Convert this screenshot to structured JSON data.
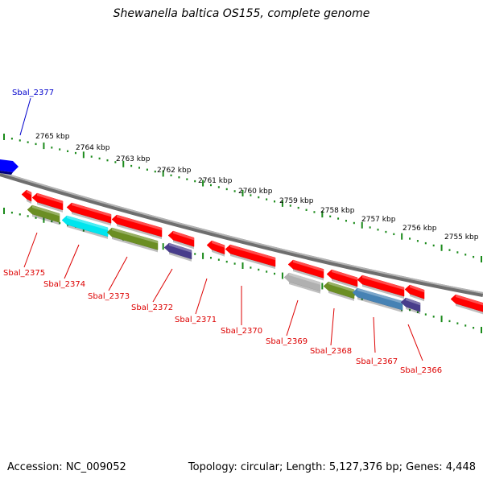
{
  "title": "Shewanella baltica OS155, complete genome",
  "footer": {
    "accession": "Accession: NC_009052",
    "summary": "Topology: circular; Length: 5,127,376 bp; Genes: 4,448"
  },
  "colors": {
    "backbone": "#808080",
    "ticks": "#1a8a1a",
    "label_forward": "#0000cc",
    "label_reverse": "#dd0000",
    "gene_red": "#ff0000",
    "gene_blue": "#0000ff",
    "gene_olive": "#6b8e23",
    "gene_cyan": "#00e5ee",
    "gene_slate": "#483d8b",
    "gene_grey": "#b0b0b0",
    "gene_steel": "#4682b4"
  },
  "scale_labels": [
    "2765 kbp",
    "2764 kbp",
    "2763 kbp",
    "2762 kbp",
    "2761 kbp",
    "2760 kbp",
    "2759 kbp",
    "2758 kbp",
    "2757 kbp",
    "2756 kbp",
    "2755 kbp"
  ],
  "gene_labels": [
    "Sbal_2377",
    "Sbal_2375",
    "Sbal_2374",
    "Sbal_2373",
    "Sbal_2372",
    "Sbal_2371",
    "Sbal_2370",
    "Sbal_2369",
    "Sbal_2368",
    "Sbal_2367",
    "Sbal_2366"
  ]
}
